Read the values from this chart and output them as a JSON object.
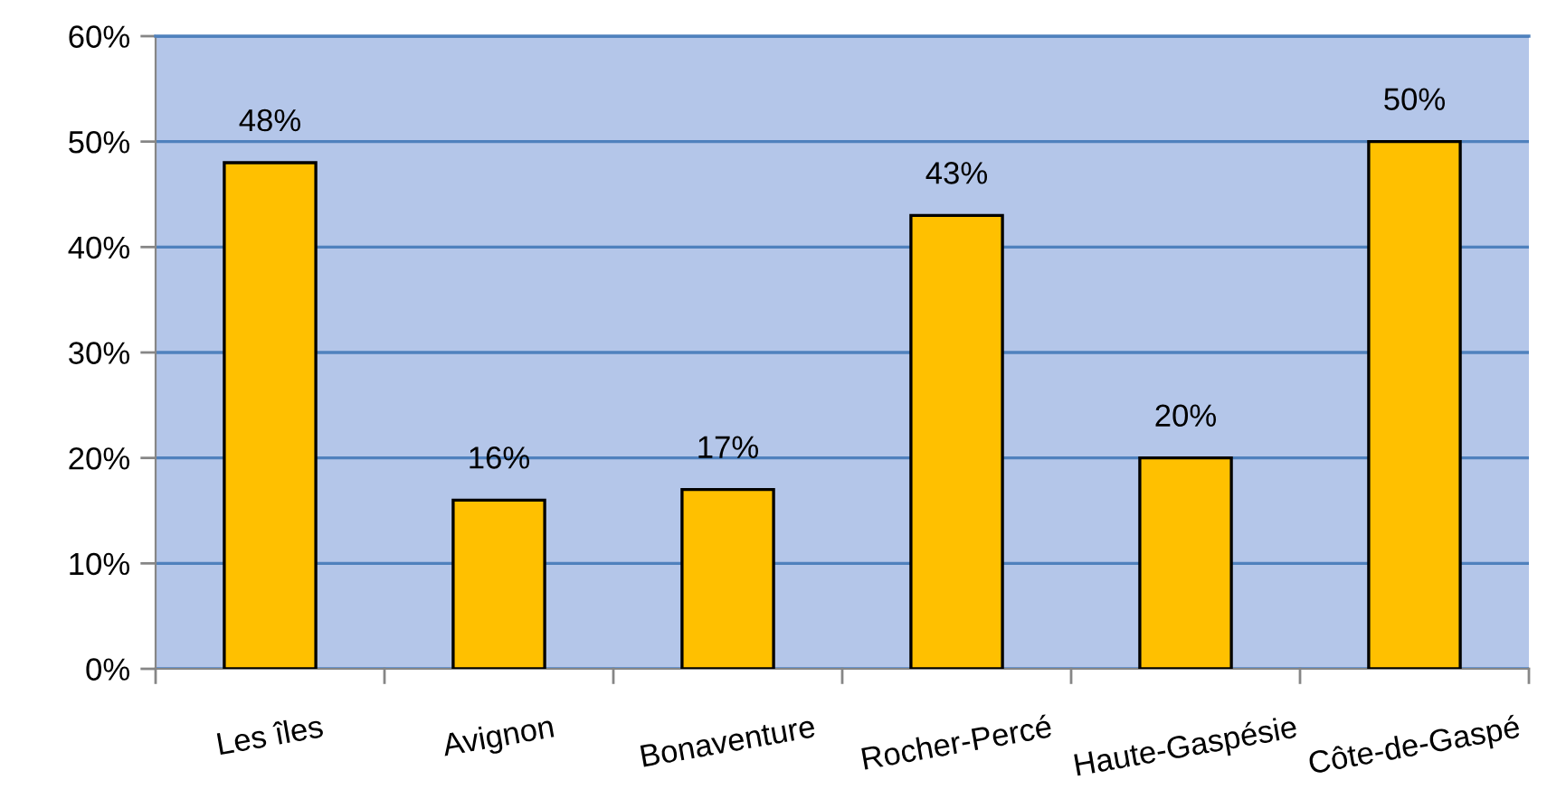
{
  "chart_data": {
    "type": "bar",
    "categories": [
      "Les îles",
      "Avignon",
      "Bonaventure",
      "Rocher-Percé",
      "Haute-Gaspésie",
      "Côte-de-Gaspé"
    ],
    "values": [
      48,
      16,
      17,
      43,
      20,
      50
    ],
    "value_labels": [
      "48%",
      "16%",
      "17%",
      "43%",
      "20%",
      "50%"
    ],
    "color": "#ffc000",
    "ylim": [
      0,
      60
    ],
    "yticks": [
      {
        "value": 0,
        "label": "0%"
      },
      {
        "value": 10,
        "label": "10%"
      },
      {
        "value": 20,
        "label": "20%"
      },
      {
        "value": 30,
        "label": "30%"
      },
      {
        "value": 40,
        "label": "40%"
      },
      {
        "value": 50,
        "label": "50%"
      },
      {
        "value": 60,
        "label": "60%"
      }
    ],
    "grid": "y"
  }
}
